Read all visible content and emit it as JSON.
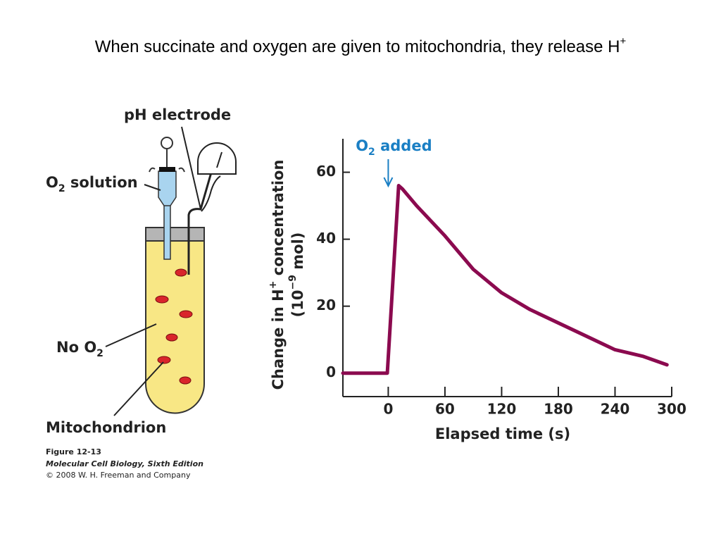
{
  "slide": {
    "title": [
      "When succinate and oxygen are given to mitochondria, they release H",
      "+"
    ]
  },
  "diagram": {
    "electrode": "pH electrode",
    "o2_solution": [
      "O",
      "2",
      " solution"
    ],
    "no_o2": [
      "No O",
      "2"
    ],
    "mitochondrion": "Mitochondrion"
  },
  "caption": [
    "Figure 12-13",
    "Molecular Cell Biology, Sixth Edition",
    "© 2008 W. H. Freeman and Company"
  ],
  "chart_data": {
    "type": "line",
    "ylabel": [
      "Change in H",
      "+",
      " concentration"
    ],
    "ylabel2": [
      "(10",
      "−9",
      " mol)"
    ],
    "xlabel": "Elapsed time (s)",
    "annotation": [
      "O",
      "2",
      " added"
    ],
    "annotation_x": 0,
    "x": [
      -48,
      -1,
      11,
      15,
      30,
      60,
      90,
      120,
      150,
      180,
      210,
      240,
      270,
      295
    ],
    "values": [
      0,
      0,
      56,
      55,
      50,
      41,
      31,
      24,
      19,
      15,
      11,
      7,
      5,
      2.5
    ],
    "color": "#8b0a4f",
    "xlim": [
      -48,
      300
    ],
    "ylim": [
      -7,
      70
    ],
    "xticks": [
      0,
      60,
      120,
      180,
      240,
      300
    ],
    "yticks": [
      0,
      20,
      40,
      60
    ]
  }
}
